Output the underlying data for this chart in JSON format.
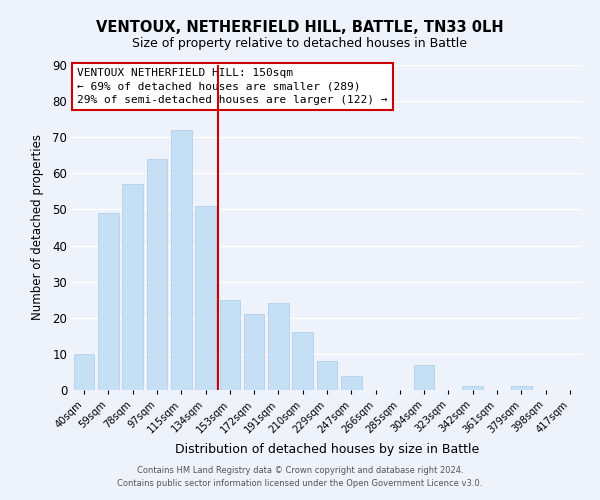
{
  "title": "VENTOUX, NETHERFIELD HILL, BATTLE, TN33 0LH",
  "subtitle": "Size of property relative to detached houses in Battle",
  "xlabel": "Distribution of detached houses by size in Battle",
  "ylabel": "Number of detached properties",
  "bar_labels": [
    "40sqm",
    "59sqm",
    "78sqm",
    "97sqm",
    "115sqm",
    "134sqm",
    "153sqm",
    "172sqm",
    "191sqm",
    "210sqm",
    "229sqm",
    "247sqm",
    "266sqm",
    "285sqm",
    "304sqm",
    "323sqm",
    "342sqm",
    "361sqm",
    "379sqm",
    "398sqm",
    "417sqm"
  ],
  "bar_values": [
    10,
    49,
    57,
    64,
    72,
    51,
    25,
    21,
    24,
    16,
    8,
    4,
    0,
    0,
    7,
    0,
    1,
    0,
    1,
    0,
    0
  ],
  "bar_color": "#c5dff5",
  "bar_edge_color": "#a0c4e8",
  "vline_x_index": 6,
  "vline_color": "#cc0000",
  "ylim": [
    0,
    90
  ],
  "yticks": [
    0,
    10,
    20,
    30,
    40,
    50,
    60,
    70,
    80,
    90
  ],
  "annotation_title": "VENTOUX NETHERFIELD HILL: 150sqm",
  "annotation_line1": "← 69% of detached houses are smaller (289)",
  "annotation_line2": "29% of semi-detached houses are larger (122) →",
  "footer_line1": "Contains HM Land Registry data © Crown copyright and database right 2024.",
  "footer_line2": "Contains public sector information licensed under the Open Government Licence v3.0.",
  "background_color": "#eef2fb",
  "grid_color": "#ffffff",
  "title_fontsize": 10.5,
  "subtitle_fontsize": 9,
  "annotation_fontsize": 8,
  "footer_fontsize": 6
}
